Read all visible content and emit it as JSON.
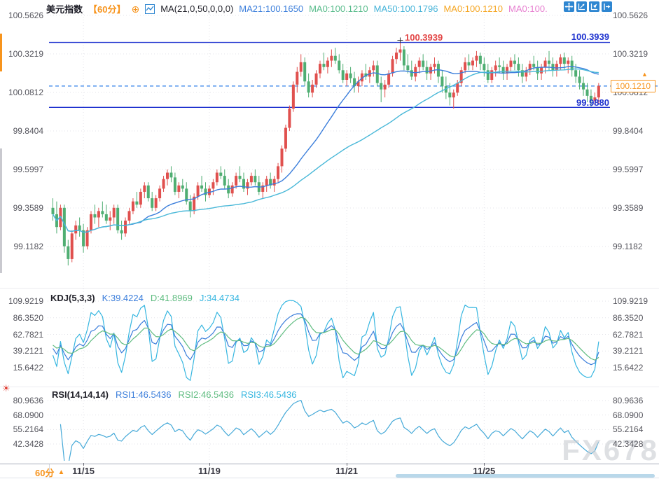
{
  "header": {
    "title": "美元指数",
    "timeframe": "【60分】",
    "plus_icon": "⊕",
    "ma_settings": "MA(21,0,50,0,0,0)",
    "ma_values": [
      {
        "label": "MA21:100.1650",
        "color": "#3b7edb"
      },
      {
        "label": "MA0:100.1210",
        "color": "#57bb8a"
      },
      {
        "label": "MA50:100.1796",
        "color": "#45b3d8"
      },
      {
        "label": "MA0:100.1210",
        "color": "#f5a623"
      },
      {
        "label": "MA0:100.",
        "color": "#e77fd0"
      }
    ]
  },
  "toolbar": {
    "icons": [
      "move-icon",
      "fit-scale-icon",
      "auto-scale-icon",
      "jump-latest-icon"
    ]
  },
  "kdj_header": {
    "title": "KDJ(5,3,3)",
    "k": "K:39.4224",
    "d": "D:41.8969",
    "j": "J:34.4734"
  },
  "rsi_header": {
    "title": "RSI(14,14,14)",
    "rsi1": "RSI1:46.5436",
    "rsi2": "RSI2:46.5436",
    "rsi3": "RSI3:46.5436"
  },
  "hline_labels": {
    "upper_left": "100.3939",
    "upper_right": "100.3939",
    "lower_right": "99.9880"
  },
  "price_tag": {
    "value": "100.1210",
    "arrow": "▲"
  },
  "bottom": {
    "timeframe_label": "60分",
    "marker": "▲"
  },
  "watermark": "FX678",
  "sun_icon": "☀",
  "colors": {
    "up": "#e0504e",
    "down": "#4fae72",
    "ma21": "#3b7edb",
    "ma50": "#49b8d8",
    "kdj_k": "#3b7edb",
    "kdj_d": "#5fbc80",
    "kdj_j": "#36b6e0",
    "rsi_line": "#45a9d8",
    "alert_line": "#1f33cf",
    "dashed_line": "#2f7fe8",
    "accent_orange": "#f7941d",
    "label_red": "#e24545",
    "icon_blue": "#2e86d1",
    "grid": "#e3e3e8"
  },
  "chart_data": {
    "type": "candlestick",
    "title": "美元指数 60分",
    "legend_position": "top",
    "grid": true,
    "main": {
      "ylabels": [
        "100.5626",
        "100.3219",
        "100.0812",
        "99.8404",
        "99.5997",
        "99.3589",
        "99.1182"
      ],
      "ymax": 100.5626,
      "ymin": 99.1182,
      "hlines": [
        100.3939,
        99.988
      ],
      "current_price": 100.121,
      "peak_value": 100.3939,
      "peak_index": 91,
      "ma_periods": [
        21,
        50
      ],
      "candles": [
        [
          99.36,
          99.42,
          99.28,
          99.32
        ],
        [
          99.32,
          99.4,
          99.2,
          99.24
        ],
        [
          99.24,
          99.38,
          99.22,
          99.36
        ],
        [
          99.36,
          99.38,
          99.08,
          99.12
        ],
        [
          99.12,
          99.16,
          99.0,
          99.04
        ],
        [
          99.04,
          99.22,
          99.02,
          99.2
        ],
        [
          99.2,
          99.28,
          99.16,
          99.25
        ],
        [
          99.25,
          99.3,
          99.18,
          99.22
        ],
        [
          99.22,
          99.26,
          99.08,
          99.12
        ],
        [
          99.12,
          99.24,
          99.1,
          99.22
        ],
        [
          99.22,
          99.34,
          99.2,
          99.32
        ],
        [
          99.32,
          99.38,
          99.26,
          99.3
        ],
        [
          99.3,
          99.36,
          99.24,
          99.34
        ],
        [
          99.34,
          99.4,
          99.3,
          99.32
        ],
        [
          99.32,
          99.38,
          99.26,
          99.28
        ],
        [
          99.28,
          99.34,
          99.22,
          99.3
        ],
        [
          99.3,
          99.38,
          99.26,
          99.36
        ],
        [
          99.36,
          99.38,
          99.2,
          99.22
        ],
        [
          99.22,
          99.28,
          99.16,
          99.2
        ],
        [
          99.2,
          99.3,
          99.18,
          99.28
        ],
        [
          99.28,
          99.36,
          99.26,
          99.34
        ],
        [
          99.34,
          99.42,
          99.32,
          99.4
        ],
        [
          99.4,
          99.46,
          99.36,
          99.38
        ],
        [
          99.38,
          99.48,
          99.36,
          99.46
        ],
        [
          99.46,
          99.52,
          99.42,
          99.5
        ],
        [
          99.5,
          99.52,
          99.4,
          99.42
        ],
        [
          99.42,
          99.46,
          99.34,
          99.36
        ],
        [
          99.36,
          99.44,
          99.34,
          99.42
        ],
        [
          99.42,
          99.5,
          99.4,
          99.48
        ],
        [
          99.48,
          99.56,
          99.46,
          99.54
        ],
        [
          99.54,
          99.6,
          99.5,
          99.58
        ],
        [
          99.58,
          99.62,
          99.52,
          99.55
        ],
        [
          99.55,
          99.58,
          99.44,
          99.46
        ],
        [
          99.46,
          99.52,
          99.42,
          99.5
        ],
        [
          99.5,
          99.54,
          99.46,
          99.48
        ],
        [
          99.48,
          99.52,
          99.38,
          99.4
        ],
        [
          99.4,
          99.44,
          99.3,
          99.34
        ],
        [
          99.34,
          99.45,
          99.32,
          99.43
        ],
        [
          99.43,
          99.52,
          99.41,
          99.5
        ],
        [
          99.5,
          99.56,
          99.46,
          99.48
        ],
        [
          99.48,
          99.52,
          99.4,
          99.44
        ],
        [
          99.44,
          99.5,
          99.42,
          99.48
        ],
        [
          99.48,
          99.54,
          99.44,
          99.52
        ],
        [
          99.52,
          99.6,
          99.5,
          99.58
        ],
        [
          99.58,
          99.62,
          99.54,
          99.56
        ],
        [
          99.56,
          99.6,
          99.48,
          99.5
        ],
        [
          99.5,
          99.54,
          99.42,
          99.45
        ],
        [
          99.45,
          99.52,
          99.43,
          99.5
        ],
        [
          99.5,
          99.58,
          99.48,
          99.56
        ],
        [
          99.56,
          99.62,
          99.52,
          99.54
        ],
        [
          99.54,
          99.58,
          99.46,
          99.48
        ],
        [
          99.48,
          99.54,
          99.44,
          99.52
        ],
        [
          99.52,
          99.58,
          99.5,
          99.56
        ],
        [
          99.56,
          99.6,
          99.5,
          99.52
        ],
        [
          99.52,
          99.56,
          99.44,
          99.46
        ],
        [
          99.46,
          99.52,
          99.42,
          99.5
        ],
        [
          99.5,
          99.56,
          99.46,
          99.54
        ],
        [
          99.54,
          99.58,
          99.48,
          99.5
        ],
        [
          99.5,
          99.56,
          99.46,
          99.54
        ],
        [
          99.54,
          99.64,
          99.52,
          99.62
        ],
        [
          99.62,
          99.75,
          99.58,
          99.73
        ],
        [
          99.73,
          99.88,
          99.71,
          99.86
        ],
        [
          99.86,
          100.0,
          99.84,
          99.98
        ],
        [
          99.98,
          100.15,
          99.96,
          100.13
        ],
        [
          100.13,
          100.24,
          100.08,
          100.21
        ],
        [
          100.21,
          100.32,
          100.18,
          100.27
        ],
        [
          100.27,
          100.3,
          100.12,
          100.15
        ],
        [
          100.15,
          100.2,
          100.05,
          100.08
        ],
        [
          100.08,
          100.16,
          100.05,
          100.13
        ],
        [
          100.13,
          100.22,
          100.11,
          100.2
        ],
        [
          100.2,
          100.28,
          100.17,
          100.26
        ],
        [
          100.26,
          100.33,
          100.22,
          100.24
        ],
        [
          100.24,
          100.3,
          100.2,
          100.28
        ],
        [
          100.28,
          100.35,
          100.24,
          100.31
        ],
        [
          100.31,
          100.36,
          100.26,
          100.28
        ],
        [
          100.28,
          100.32,
          100.2,
          100.22
        ],
        [
          100.22,
          100.26,
          100.14,
          100.16
        ],
        [
          100.16,
          100.22,
          100.12,
          100.2
        ],
        [
          100.2,
          100.24,
          100.14,
          100.17
        ],
        [
          100.17,
          100.21,
          100.08,
          100.12
        ],
        [
          100.12,
          100.18,
          100.08,
          100.15
        ],
        [
          100.15,
          100.22,
          100.12,
          100.2
        ],
        [
          100.2,
          100.26,
          100.16,
          100.18
        ],
        [
          100.18,
          100.24,
          100.14,
          100.22
        ],
        [
          100.22,
          100.28,
          100.18,
          100.25
        ],
        [
          100.25,
          100.28,
          100.12,
          100.14
        ],
        [
          100.14,
          100.18,
          100.02,
          100.1
        ],
        [
          100.1,
          100.16,
          100.05,
          100.13
        ],
        [
          100.13,
          100.22,
          100.11,
          100.2
        ],
        [
          100.2,
          100.31,
          100.18,
          100.29
        ],
        [
          100.29,
          100.36,
          100.26,
          100.33
        ],
        [
          100.33,
          100.3939,
          100.28,
          100.35
        ],
        [
          100.35,
          100.37,
          100.22,
          100.25
        ],
        [
          100.25,
          100.32,
          100.2,
          100.22
        ],
        [
          100.22,
          100.28,
          100.16,
          100.18
        ],
        [
          100.18,
          100.26,
          100.15,
          100.24
        ],
        [
          100.24,
          100.3,
          100.2,
          100.28
        ],
        [
          100.28,
          100.32,
          100.22,
          100.24
        ],
        [
          100.24,
          100.28,
          100.16,
          100.2
        ],
        [
          100.2,
          100.26,
          100.16,
          100.24
        ],
        [
          100.24,
          100.3,
          100.2,
          100.26
        ],
        [
          100.26,
          100.28,
          100.14,
          100.18
        ],
        [
          100.18,
          100.22,
          100.08,
          100.12
        ],
        [
          100.12,
          100.18,
          100.04,
          100.08
        ],
        [
          100.08,
          100.14,
          100.0,
          100.05
        ],
        [
          100.05,
          100.1,
          99.98,
          100.08
        ],
        [
          100.08,
          100.16,
          100.06,
          100.14
        ],
        [
          100.14,
          100.24,
          100.12,
          100.22
        ],
        [
          100.22,
          100.3,
          100.2,
          100.27
        ],
        [
          100.27,
          100.32,
          100.22,
          100.25
        ],
        [
          100.25,
          100.3,
          100.22,
          100.28
        ],
        [
          100.28,
          100.34,
          100.24,
          100.31
        ],
        [
          100.31,
          100.33,
          100.22,
          100.26
        ],
        [
          100.26,
          100.3,
          100.18,
          100.22
        ],
        [
          100.22,
          100.26,
          100.14,
          100.16
        ],
        [
          100.16,
          100.24,
          100.14,
          100.22
        ],
        [
          100.22,
          100.28,
          100.18,
          100.25
        ],
        [
          100.25,
          100.3,
          100.2,
          100.24
        ],
        [
          100.24,
          100.28,
          100.16,
          100.2
        ],
        [
          100.2,
          100.26,
          100.16,
          100.24
        ],
        [
          100.24,
          100.3,
          100.21,
          100.28
        ],
        [
          100.28,
          100.32,
          100.22,
          100.26
        ],
        [
          100.26,
          100.3,
          100.18,
          100.22
        ],
        [
          100.22,
          100.26,
          100.14,
          100.18
        ],
        [
          100.18,
          100.24,
          100.15,
          100.22
        ],
        [
          100.22,
          100.28,
          100.19,
          100.26
        ],
        [
          100.26,
          100.31,
          100.22,
          100.24
        ],
        [
          100.24,
          100.28,
          100.16,
          100.2
        ],
        [
          100.2,
          100.26,
          100.16,
          100.24
        ],
        [
          100.24,
          100.3,
          100.2,
          100.28
        ],
        [
          100.28,
          100.34,
          100.22,
          100.26
        ],
        [
          100.26,
          100.3,
          100.18,
          100.22
        ],
        [
          100.22,
          100.28,
          100.18,
          100.26
        ],
        [
          100.26,
          100.32,
          100.22,
          100.3
        ],
        [
          100.3,
          100.33,
          100.22,
          100.26
        ],
        [
          100.26,
          100.3,
          100.2,
          100.28
        ],
        [
          100.28,
          100.31,
          100.18,
          100.22
        ],
        [
          100.22,
          100.26,
          100.14,
          100.18
        ],
        [
          100.18,
          100.22,
          100.1,
          100.14
        ],
        [
          100.14,
          100.18,
          100.06,
          100.1
        ],
        [
          100.1,
          100.14,
          100.02,
          100.06
        ],
        [
          100.06,
          100.1,
          99.99,
          100.03
        ],
        [
          100.03,
          100.08,
          100.0,
          100.05
        ],
        [
          100.05,
          100.14,
          100.01,
          100.121
        ]
      ]
    },
    "kdj": {
      "params": [
        5,
        3,
        3
      ],
      "ylabels": [
        "109.9219",
        "86.3520",
        "62.7821",
        "39.2121",
        "15.6422"
      ],
      "last": {
        "k": 39.4224,
        "d": 41.8969,
        "j": 34.4734
      }
    },
    "rsi": {
      "period": 14,
      "ylabels": [
        "80.9636",
        "68.0900",
        "55.2164",
        "42.3428"
      ],
      "last": {
        "rsi1": 46.5436,
        "rsi2": 46.5436,
        "rsi3": 46.5436
      }
    },
    "date_ticks": [
      {
        "label": "11/15",
        "index": 8
      },
      {
        "label": "11/19",
        "index": 41
      },
      {
        "label": "11/21",
        "index": 77
      },
      {
        "label": "11/25",
        "index": 113
      }
    ]
  }
}
